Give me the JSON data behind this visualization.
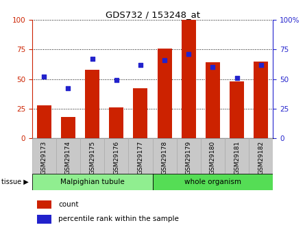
{
  "title": "GDS732 / 153248_at",
  "samples": [
    "GSM29173",
    "GSM29174",
    "GSM29175",
    "GSM29176",
    "GSM29177",
    "GSM29178",
    "GSM29179",
    "GSM29180",
    "GSM29181",
    "GSM29182"
  ],
  "count_values": [
    28,
    18,
    58,
    26,
    42,
    76,
    100,
    64,
    48,
    65
  ],
  "percentile_values": [
    52,
    42,
    67,
    49,
    62,
    66,
    71,
    60,
    51,
    62
  ],
  "tissue_groups": [
    {
      "label": "Malpighian tubule",
      "start": 0,
      "end": 5,
      "color": "#90ee90"
    },
    {
      "label": "whole organism",
      "start": 5,
      "end": 10,
      "color": "#55dd55"
    }
  ],
  "bar_color": "#cc2200",
  "dot_color": "#2222cc",
  "left_axis_color": "#cc2200",
  "right_axis_color": "#2222cc",
  "ylim": [
    0,
    100
  ],
  "yticks": [
    0,
    25,
    50,
    75,
    100
  ],
  "right_tick_labels": [
    "0",
    "25",
    "50",
    "75",
    "100%"
  ],
  "plot_bg_color": "#ffffff",
  "tissue_label": "tissue ▶",
  "legend_count": "count",
  "legend_percentile": "percentile rank within the sample",
  "xlabel_box_color": "#c8c8c8",
  "xlabel_box_edge": "#aaaaaa"
}
